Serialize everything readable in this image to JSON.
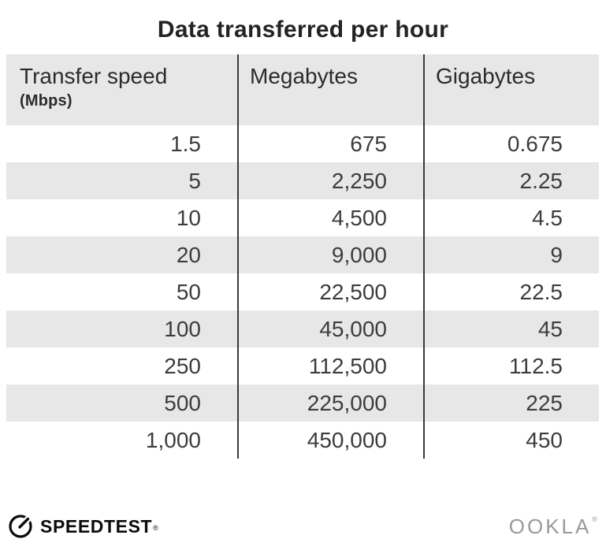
{
  "title": "Data transferred per hour",
  "table": {
    "columns": [
      {
        "label": "Transfer speed",
        "sublabel": "(Mbps)"
      },
      {
        "label": "Megabytes"
      },
      {
        "label": "Gigabytes"
      }
    ],
    "rows": [
      [
        "1.5",
        "675",
        "0.675"
      ],
      [
        "5",
        "2,250",
        "2.25"
      ],
      [
        "10",
        "4,500",
        "4.5"
      ],
      [
        "20",
        "9,000",
        "9"
      ],
      [
        "50",
        "22,500",
        "22.5"
      ],
      [
        "100",
        "45,000",
        "45"
      ],
      [
        "250",
        "112,500",
        "112.5"
      ],
      [
        "500",
        "225,000",
        "225"
      ],
      [
        "1,000",
        "450,000",
        "450"
      ]
    ]
  },
  "footer": {
    "speedtest_label": "SPEEDTEST",
    "speedtest_mark": "®",
    "ookla_label": "OOKLA",
    "ookla_mark": "®",
    "speedtest_gauge_icon": "speedometer-circle-with-needle"
  },
  "colors": {
    "stripe_bg": "#e8e7e7",
    "divider": "#3a3a3a",
    "title_text": "#232323",
    "body_text": "#3c3c3c",
    "ookla_gray": "#9a9a9a"
  },
  "chart_data": {
    "type": "table",
    "title": "Data transferred per hour",
    "columns": [
      "Transfer speed (Mbps)",
      "Megabytes",
      "Gigabytes"
    ],
    "rows": [
      [
        1.5,
        675,
        0.675
      ],
      [
        5,
        2250,
        2.25
      ],
      [
        10,
        4500,
        4.5
      ],
      [
        20,
        9000,
        9
      ],
      [
        50,
        22500,
        22.5
      ],
      [
        100,
        45000,
        45
      ],
      [
        250,
        112500,
        112.5
      ],
      [
        500,
        225000,
        225
      ],
      [
        1000,
        450000,
        450
      ]
    ],
    "layout": {
      "grid": "alternating-row-stripes",
      "column_dividers": true,
      "value_alignment": "right"
    }
  }
}
